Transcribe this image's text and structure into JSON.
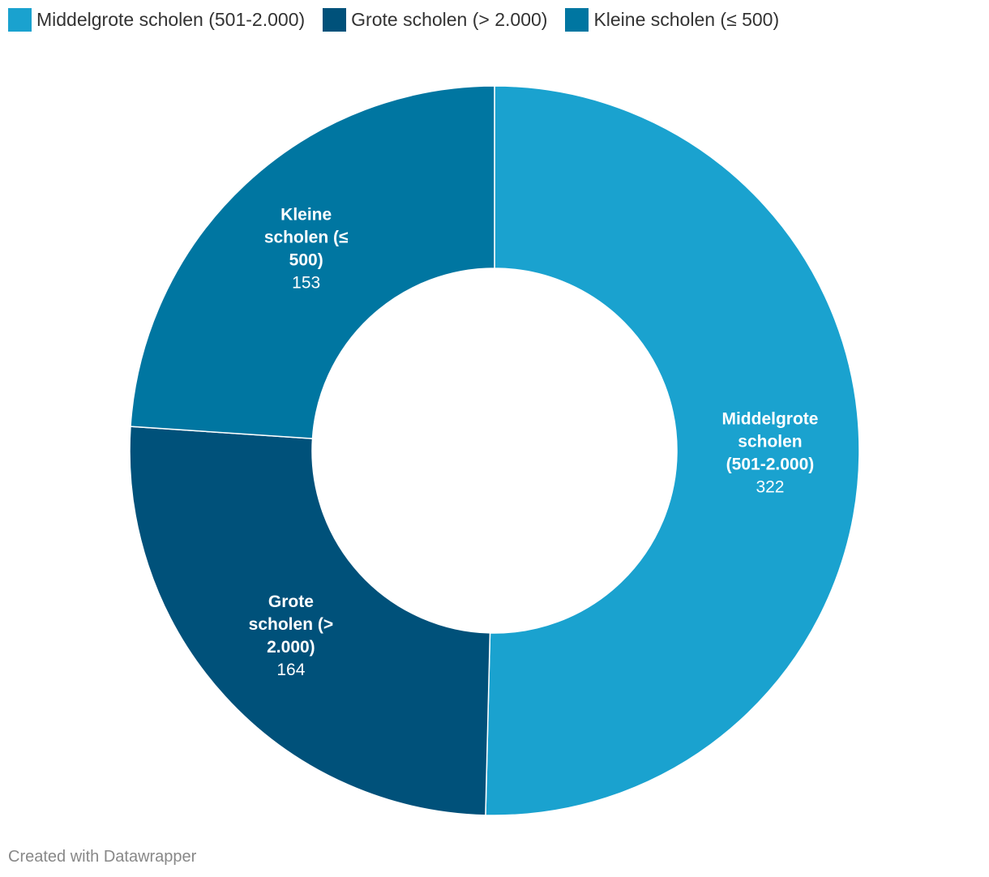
{
  "chart_data": {
    "type": "pie",
    "variant": "donut",
    "title": "",
    "categories": [
      "Middelgrote scholen (501-2.000)",
      "Grote scholen (> 2.000)",
      "Kleine scholen (≤ 500)"
    ],
    "values": [
      322,
      164,
      153
    ],
    "colors": [
      "#1aa2cf",
      "#00517a",
      "#0076a1"
    ],
    "slice_labels": [
      {
        "lines": [
          "Middelgrote",
          "scholen",
          "(501-2.000)"
        ],
        "value": "322"
      },
      {
        "lines": [
          "Grote",
          "scholen (>",
          "2.000)"
        ],
        "value": "164"
      },
      {
        "lines": [
          "Kleine",
          "scholen (≤",
          "500)"
        ],
        "value": "153"
      }
    ],
    "legend": {
      "position": "top-left",
      "entries": [
        "Middelgrote scholen (501-2.000)",
        "Grote scholen (> 2.000)",
        "Kleine scholen (≤ 500)"
      ]
    }
  },
  "footer": {
    "credit": "Created with Datawrapper"
  }
}
